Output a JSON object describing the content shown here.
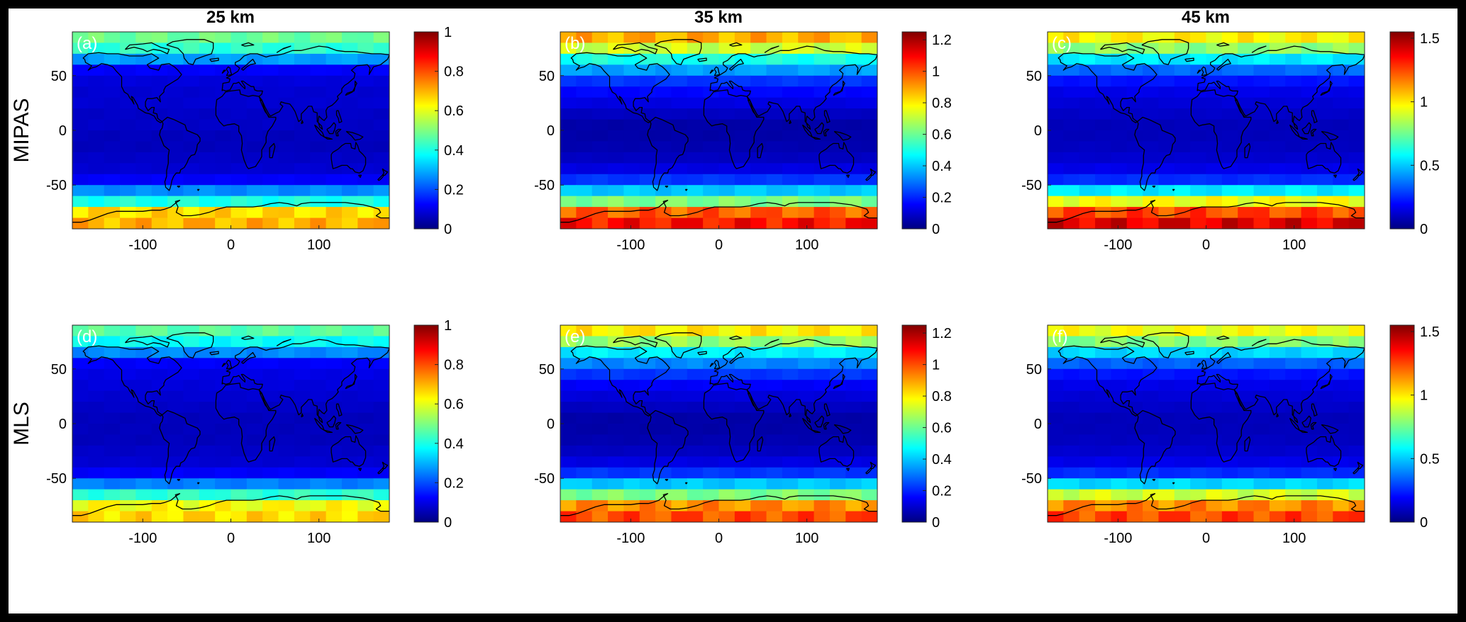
{
  "figure": {
    "column_titles": [
      "25 km",
      "35 km",
      "45 km"
    ],
    "row_labels": [
      "MIPAS",
      "MLS"
    ]
  },
  "chart_data": [
    {
      "panel": "a",
      "type": "heatmap",
      "instrument": "MIPAS",
      "altitude": "25 km",
      "panel_label": "(a)",
      "xlim": [
        -180,
        180
      ],
      "ylim": [
        -90,
        90
      ],
      "x_ticks": [
        -100,
        0,
        100
      ],
      "x_tick_labels": [
        "-100",
        "0",
        "100"
      ],
      "y_ticks": [
        50,
        0,
        -50
      ],
      "y_tick_labels": [
        "50",
        "0",
        "-50"
      ],
      "colormap": "jet",
      "colorbar": {
        "min": 0,
        "max": 1,
        "ticks": [
          0,
          0.2,
          0.4,
          0.6,
          0.8,
          1
        ],
        "tick_labels": [
          "0",
          "0.2",
          "0.4",
          "0.6",
          "0.8",
          "1"
        ]
      },
      "lat_edges": [
        90,
        80,
        70,
        60,
        50,
        40,
        30,
        20,
        10,
        0,
        -10,
        -20,
        -30,
        -40,
        -50,
        -60,
        -70,
        -80,
        -90
      ],
      "lat_values": [
        0.48,
        0.42,
        0.28,
        0.12,
        0.09,
        0.08,
        0.08,
        0.07,
        0.07,
        0.06,
        0.06,
        0.07,
        0.08,
        0.12,
        0.26,
        0.4,
        0.66,
        0.7
      ],
      "overlay": "coastlines"
    },
    {
      "panel": "b",
      "type": "heatmap",
      "instrument": "MIPAS",
      "altitude": "35 km",
      "panel_label": "(b)",
      "xlim": [
        -180,
        180
      ],
      "ylim": [
        -90,
        90
      ],
      "x_ticks": [
        -100,
        0,
        100
      ],
      "x_tick_labels": [
        "-100",
        "0",
        "100"
      ],
      "y_ticks": [
        50,
        0,
        -50
      ],
      "y_tick_labels": [
        "50",
        "0",
        "-50"
      ],
      "colormap": "jet",
      "colorbar": {
        "min": 0,
        "max": 1.25,
        "ticks": [
          0,
          0.2,
          0.4,
          0.6,
          0.8,
          1,
          1.2
        ],
        "tick_labels": [
          "0",
          "0.2",
          "0.4",
          "0.6",
          "0.8",
          "1",
          "1.2"
        ]
      },
      "lat_edges": [
        90,
        80,
        70,
        60,
        50,
        40,
        30,
        20,
        10,
        0,
        -10,
        -20,
        -30,
        -40,
        -50,
        -60,
        -70,
        -80,
        -90
      ],
      "lat_values": [
        0.88,
        0.72,
        0.5,
        0.35,
        0.22,
        0.16,
        0.12,
        0.08,
        0.05,
        0.05,
        0.06,
        0.08,
        0.12,
        0.22,
        0.4,
        0.62,
        0.98,
        1.08
      ],
      "overlay": "coastlines"
    },
    {
      "panel": "c",
      "type": "heatmap",
      "instrument": "MIPAS",
      "altitude": "45 km",
      "panel_label": "(c)",
      "xlim": [
        -180,
        180
      ],
      "ylim": [
        -90,
        90
      ],
      "x_ticks": [
        -100,
        0,
        100
      ],
      "x_tick_labels": [
        "-100",
        "0",
        "100"
      ],
      "y_ticks": [
        50,
        0,
        -50
      ],
      "y_tick_labels": [
        "50",
        "0",
        "-50"
      ],
      "colormap": "jet",
      "colorbar": {
        "min": 0,
        "max": 1.55,
        "ticks": [
          0,
          0.5,
          1,
          1.5
        ],
        "tick_labels": [
          "0",
          "0.5",
          "1",
          "1.5"
        ]
      },
      "lat_edges": [
        90,
        80,
        70,
        60,
        50,
        40,
        30,
        20,
        10,
        0,
        -10,
        -20,
        -30,
        -40,
        -50,
        -60,
        -70,
        -80,
        -90
      ],
      "lat_values": [
        0.98,
        0.8,
        0.55,
        0.35,
        0.22,
        0.16,
        0.13,
        0.11,
        0.09,
        0.09,
        0.1,
        0.12,
        0.16,
        0.26,
        0.55,
        0.95,
        1.25,
        1.4
      ],
      "overlay": "coastlines"
    },
    {
      "panel": "d",
      "type": "heatmap",
      "instrument": "MLS",
      "altitude": "25 km",
      "panel_label": "(d)",
      "xlim": [
        -180,
        180
      ],
      "ylim": [
        -90,
        90
      ],
      "x_ticks": [
        -100,
        0,
        100
      ],
      "x_tick_labels": [
        "-100",
        "0",
        "100"
      ],
      "y_ticks": [
        50,
        0,
        -50
      ],
      "y_tick_labels": [
        "50",
        "0",
        "-50"
      ],
      "colormap": "jet",
      "colorbar": {
        "min": 0,
        "max": 1,
        "ticks": [
          0,
          0.2,
          0.4,
          0.6,
          0.8,
          1
        ],
        "tick_labels": [
          "0",
          "0.2",
          "0.4",
          "0.6",
          "0.8",
          "1"
        ]
      },
      "lat_edges": [
        90,
        80,
        70,
        60,
        50,
        40,
        30,
        20,
        10,
        0,
        -10,
        -20,
        -30,
        -40,
        -50,
        -60,
        -70,
        -80,
        -90
      ],
      "lat_values": [
        0.46,
        0.38,
        0.26,
        0.12,
        0.1,
        0.09,
        0.08,
        0.07,
        0.06,
        0.06,
        0.06,
        0.07,
        0.08,
        0.12,
        0.25,
        0.42,
        0.62,
        0.66
      ],
      "overlay": "coastlines"
    },
    {
      "panel": "e",
      "type": "heatmap",
      "instrument": "MLS",
      "altitude": "35 km",
      "panel_label": "(e)",
      "xlim": [
        -180,
        180
      ],
      "ylim": [
        -90,
        90
      ],
      "x_ticks": [
        -100,
        0,
        100
      ],
      "x_tick_labels": [
        "-100",
        "0",
        "100"
      ],
      "y_ticks": [
        50,
        0,
        -50
      ],
      "y_tick_labels": [
        "50",
        "0",
        "-50"
      ],
      "colormap": "jet",
      "colorbar": {
        "min": 0,
        "max": 1.25,
        "ticks": [
          0,
          0.2,
          0.4,
          0.6,
          0.8,
          1,
          1.2
        ],
        "tick_labels": [
          "0",
          "0.2",
          "0.4",
          "0.6",
          "0.8",
          "1",
          "1.2"
        ]
      },
      "lat_edges": [
        90,
        80,
        70,
        60,
        50,
        40,
        30,
        20,
        10,
        0,
        -10,
        -20,
        -30,
        -40,
        -50,
        -60,
        -70,
        -80,
        -90
      ],
      "lat_values": [
        0.8,
        0.65,
        0.45,
        0.32,
        0.22,
        0.15,
        0.11,
        0.08,
        0.05,
        0.05,
        0.06,
        0.08,
        0.12,
        0.22,
        0.4,
        0.62,
        0.92,
        1.0
      ],
      "overlay": "coastlines"
    },
    {
      "panel": "f",
      "type": "heatmap",
      "instrument": "MLS",
      "altitude": "45 km",
      "panel_label": "(f)",
      "xlim": [
        -180,
        180
      ],
      "ylim": [
        -90,
        90
      ],
      "x_ticks": [
        -100,
        0,
        100
      ],
      "x_tick_labels": [
        "-100",
        "0",
        "100"
      ],
      "y_ticks": [
        50,
        0,
        -50
      ],
      "y_tick_labels": [
        "50",
        "0",
        "-50"
      ],
      "colormap": "jet",
      "colorbar": {
        "min": 0,
        "max": 1.55,
        "ticks": [
          0,
          0.5,
          1,
          1.5
        ],
        "tick_labels": [
          "0",
          "0.5",
          "1",
          "1.5"
        ]
      },
      "lat_edges": [
        90,
        80,
        70,
        60,
        50,
        40,
        30,
        20,
        10,
        0,
        -10,
        -20,
        -30,
        -40,
        -50,
        -60,
        -70,
        -80,
        -90
      ],
      "lat_values": [
        0.95,
        0.78,
        0.52,
        0.34,
        0.22,
        0.16,
        0.13,
        0.11,
        0.09,
        0.09,
        0.1,
        0.12,
        0.16,
        0.26,
        0.52,
        0.9,
        1.15,
        1.25
      ],
      "overlay": "coastlines"
    }
  ]
}
